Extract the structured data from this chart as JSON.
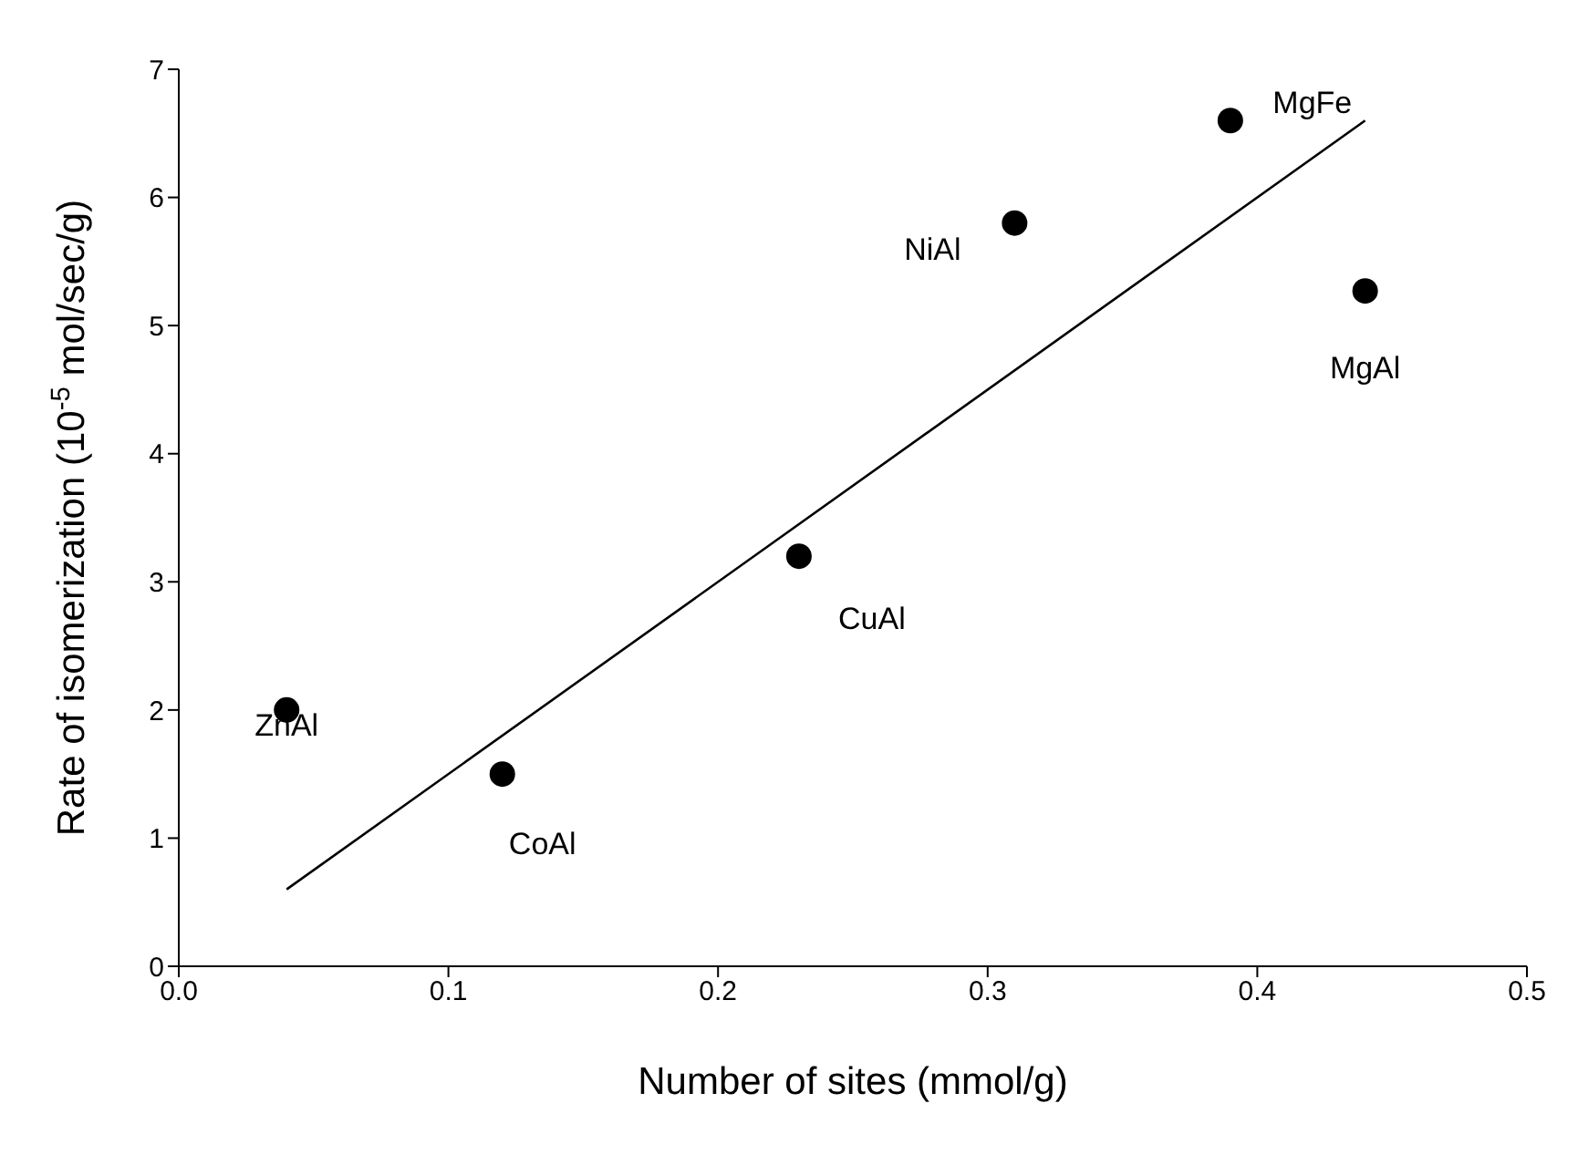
{
  "chart_data": {
    "type": "scatter",
    "xlabel": "Number of sites (mmol/g)",
    "ylabel": "Rate of isomerization (10$^{-5}$ mol/sec/g)",
    "xlim": [
      0,
      0.5
    ],
    "ylim": [
      0,
      7
    ],
    "xticks": [
      {
        "value": 0,
        "label": "0.0"
      },
      {
        "value": 0.1,
        "label": "0.1"
      },
      {
        "value": 0.2,
        "label": "0.2"
      },
      {
        "value": 0.3,
        "label": "0.3"
      },
      {
        "value": 0.4,
        "label": "0.4"
      },
      {
        "value": 0.5,
        "label": "0.5"
      }
    ],
    "yticks": [
      0,
      1,
      2,
      3,
      4,
      5,
      6,
      7
    ],
    "grid": false,
    "legend": false,
    "marker": "circle",
    "series": [
      {
        "color": "#000000",
        "x": [
          0.04,
          0.12,
          0.23,
          0.31,
          0.39,
          0.44
        ],
        "values": [
          2.0,
          1.5,
          3.2,
          5.8,
          6.6,
          5.27
        ]
      },
      {
        "type": "line",
        "color": "#000000",
        "x": [
          0.04,
          0.44
        ],
        "values": [
          0.6,
          6.6
        ],
        "marker": "none",
        "line_style": "solid"
      }
    ],
    "annotations": [
      {
        "text": "ZnAl",
        "x": 0.04,
        "y": 2.0
      },
      {
        "text": "CoAl",
        "x": 0.12,
        "y": 1.5
      },
      {
        "text": "CuAl",
        "x": 0.23,
        "y": 3.2
      },
      {
        "text": "NiAl",
        "x": 0.31,
        "y": 5.8
      },
      {
        "text": "MgFe",
        "x": 0.39,
        "y": 6.6
      },
      {
        "text": "MgAl",
        "x": 0.44,
        "y": 5.27
      }
    ]
  }
}
